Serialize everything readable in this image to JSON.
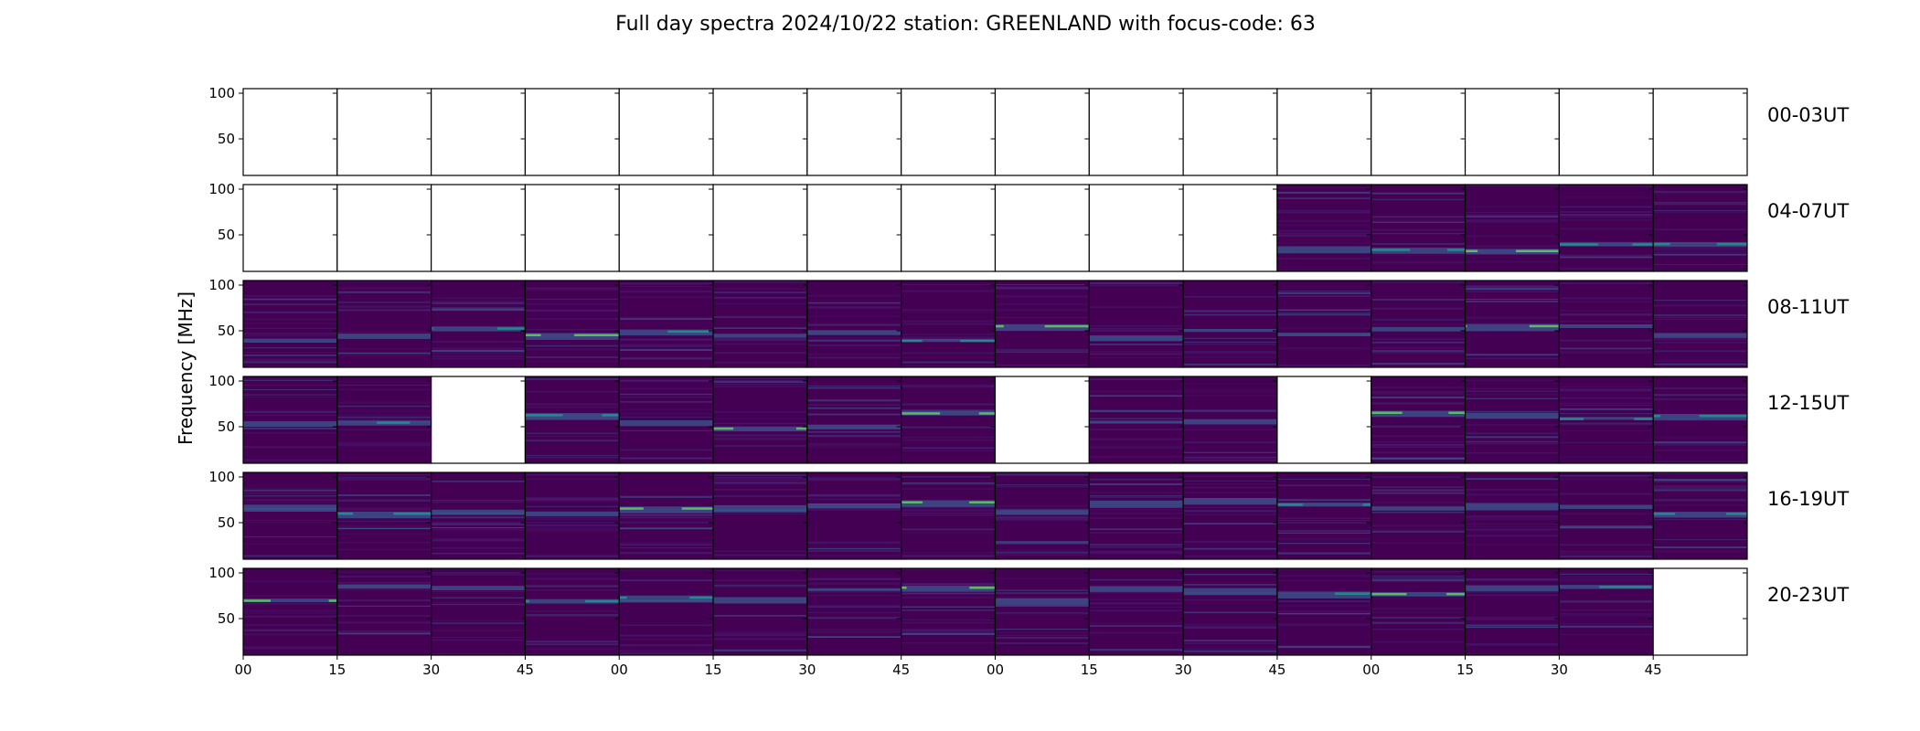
{
  "title": "Full day spectra 2024/10/22 station: GREENLAND with focus-code: 63",
  "chart_data": {
    "type": "heatmap",
    "title": "Full day spectra 2024/10/22 station: GREENLAND with focus-code: 63",
    "ylabel": "Frequency [MHz]",
    "xlabel": "",
    "y_ticks": [
      "100",
      "50"
    ],
    "x_ticks": [
      "00",
      "15",
      "30",
      "45",
      "00",
      "15",
      "30",
      "45",
      "00",
      "15",
      "30",
      "45",
      "00",
      "15",
      "30",
      "45"
    ],
    "colormap": "viridis",
    "colors": {
      "background": "#440154",
      "low": "#46166b",
      "mid": "#3b528b",
      "high": "#21918c",
      "peak": "#5ec962"
    },
    "rows": [
      {
        "label": "00-03UT",
        "cells": [
          0,
          0,
          0,
          0,
          0,
          0,
          0,
          0,
          0,
          0,
          0,
          0,
          0,
          0,
          0,
          0
        ]
      },
      {
        "label": "04-07UT",
        "cells": [
          0,
          0,
          0,
          0,
          0,
          0,
          0,
          0,
          0,
          0,
          0,
          1,
          1,
          1,
          1,
          1
        ]
      },
      {
        "label": "08-11UT",
        "cells": [
          1,
          1,
          1,
          1,
          1,
          1,
          1,
          1,
          1,
          1,
          1,
          1,
          1,
          1,
          1,
          1
        ]
      },
      {
        "label": "12-15UT",
        "cells": [
          1,
          1,
          0,
          1,
          1,
          1,
          1,
          1,
          0,
          1,
          1,
          0,
          1,
          1,
          1,
          1
        ]
      },
      {
        "label": "16-19UT",
        "cells": [
          1,
          1,
          1,
          1,
          1,
          1,
          1,
          1,
          1,
          1,
          1,
          1,
          1,
          1,
          1,
          1
        ]
      },
      {
        "label": "20-23UT",
        "cells": [
          1,
          1,
          1,
          1,
          1,
          1,
          1,
          1,
          1,
          1,
          1,
          1,
          1,
          1,
          1,
          0
        ]
      }
    ]
  }
}
